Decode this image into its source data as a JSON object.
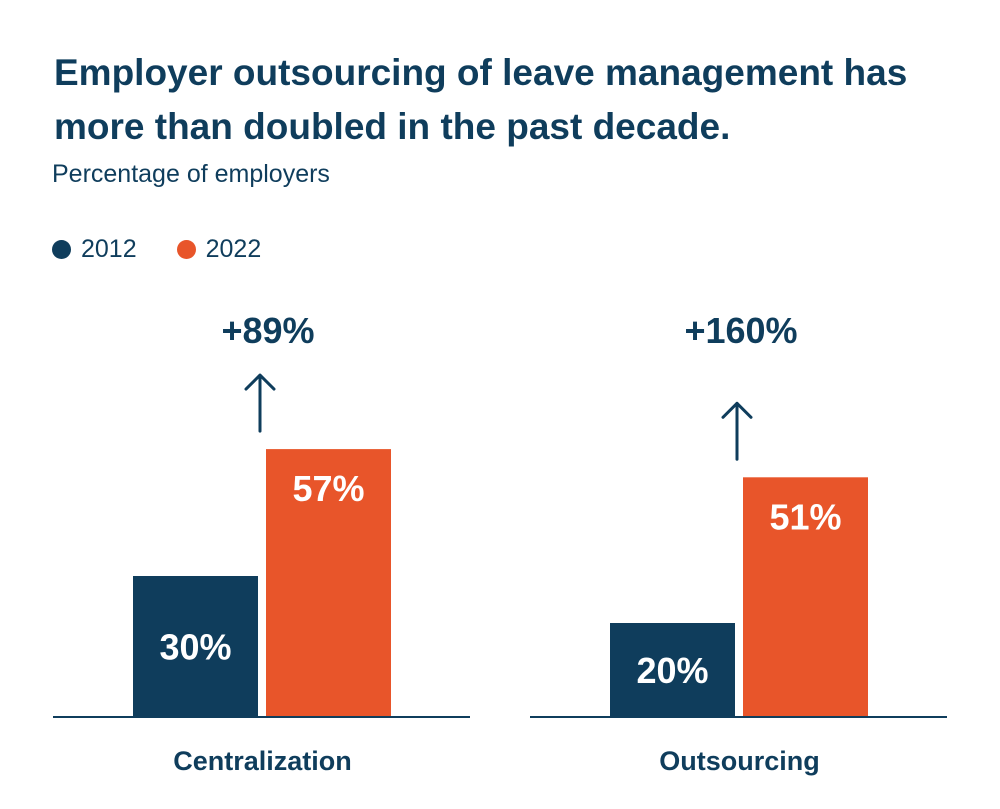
{
  "title": "Employer outsourcing of leave management has more than doubled in the past decade.",
  "subtitle": "Percentage of employers",
  "colors": {
    "s2012": "#0f3d5c",
    "s2022": "#e8552a",
    "text": "#0f3d5c",
    "axis": "#0f3d5c"
  },
  "chart_data": {
    "type": "bar",
    "categories": [
      "Centralization",
      "Outsourcing"
    ],
    "series": [
      {
        "name": "2012",
        "values": [
          30,
          20
        ],
        "labels": [
          "30%",
          "20%"
        ]
      },
      {
        "name": "2022",
        "values": [
          57,
          51
        ],
        "labels": [
          "57%",
          "51%"
        ]
      }
    ],
    "annotations": [
      "+89%",
      "+160%"
    ],
    "ylim": [
      0,
      60
    ],
    "legend": "top-left",
    "grid": false
  }
}
